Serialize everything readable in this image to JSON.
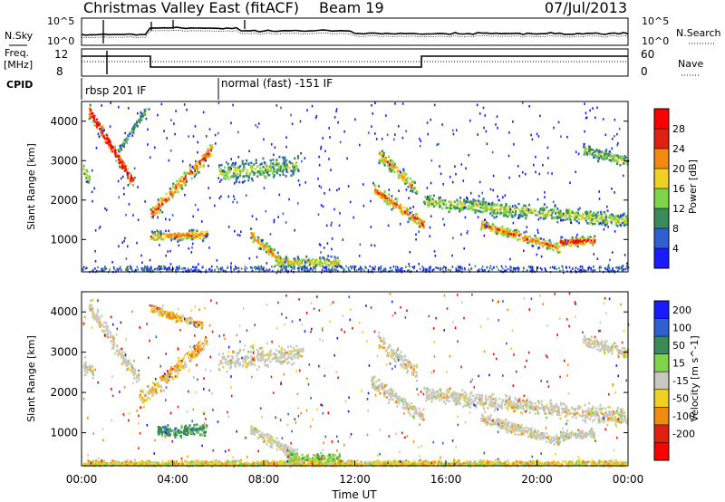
{
  "header": {
    "title": "Christmas Valley East (fitACF)",
    "beam": "Beam 19",
    "date": "07/Jul/2013"
  },
  "summary": {
    "nsky_label": "N.Sky",
    "nsearch_label": "N.Search",
    "nsky_ticks": [
      "10^5",
      "10^0"
    ],
    "nsearch_ticks": [
      "10^5",
      "10^0"
    ],
    "freq_label": "Freq.",
    "freq_unit": "[MHz]",
    "freq_ticks": [
      "12",
      "8"
    ],
    "nave_label": "Nave",
    "nave_ticks": [
      "60",
      "0"
    ],
    "cpid_label": "CPID",
    "cpid_segments": [
      {
        "label": "rbsp 201 IF",
        "start_hour": 0
      },
      {
        "label": "normal (fast) -151 IF",
        "start_hour": 6
      }
    ]
  },
  "chart_data": [
    {
      "type": "heatmap",
      "name": "power_panel",
      "ylabel": "Slant Range [km]",
      "ylim": [
        180,
        4500
      ],
      "yticks": [
        1000,
        2000,
        3000,
        4000
      ],
      "xlim_hours": [
        0,
        24
      ],
      "colorbar": {
        "label": "Power [dB]",
        "ticks": [
          "4",
          "8",
          "12",
          "16",
          "20",
          "24",
          "28"
        ],
        "colors": [
          "#1a1aff",
          "#2f5fd0",
          "#3a8a5a",
          "#7fd44a",
          "#f0d020",
          "#f08a10",
          "#e02010",
          "#ff0000"
        ]
      },
      "echo_bands": [
        {
          "t0": 0.3,
          "t1": 2.3,
          "r0": 4300,
          "r1": 2400,
          "w": 230,
          "intensity": 0.9
        },
        {
          "t0": 0.0,
          "t1": 0.35,
          "r0": 2900,
          "r1": 2500,
          "w": 220,
          "intensity": 0.4
        },
        {
          "t0": 3.0,
          "t1": 5.7,
          "r0": 1650,
          "r1": 3300,
          "w": 260,
          "intensity": 0.65
        },
        {
          "t0": 1.5,
          "t1": 2.8,
          "r0": 3200,
          "r1": 4300,
          "w": 120,
          "intensity": 0.2
        },
        {
          "t0": 3.0,
          "t1": 5.5,
          "r0": 1100,
          "r1": 1150,
          "w": 180,
          "intensity": 0.55
        },
        {
          "t0": 6.0,
          "t1": 9.5,
          "r0": 2700,
          "r1": 2900,
          "w": 380,
          "intensity": 0.3
        },
        {
          "t0": 7.4,
          "t1": 8.7,
          "r0": 1150,
          "r1": 500,
          "w": 200,
          "intensity": 0.55
        },
        {
          "t0": 8.5,
          "t1": 11.3,
          "r0": 450,
          "r1": 450,
          "w": 180,
          "intensity": 0.45
        },
        {
          "t0": 13.0,
          "t1": 14.7,
          "r0": 3200,
          "r1": 2300,
          "w": 250,
          "intensity": 0.5
        },
        {
          "t0": 12.8,
          "t1": 15.0,
          "r0": 2300,
          "r1": 1400,
          "w": 230,
          "intensity": 0.6
        },
        {
          "t0": 15.0,
          "t1": 24.0,
          "r0": 2000,
          "r1": 1500,
          "w": 260,
          "intensity": 0.35
        },
        {
          "t0": 17.5,
          "t1": 21.0,
          "r0": 1400,
          "r1": 800,
          "w": 180,
          "intensity": 0.6
        },
        {
          "t0": 21.0,
          "t1": 22.5,
          "r0": 950,
          "r1": 1000,
          "w": 150,
          "intensity": 0.75
        },
        {
          "t0": 22.0,
          "t1": 24.0,
          "r0": 3300,
          "r1": 3000,
          "w": 200,
          "intensity": 0.3
        }
      ]
    },
    {
      "type": "heatmap",
      "name": "velocity_panel",
      "ylabel": "Slant Range [km]",
      "ylim": [
        180,
        4500
      ],
      "yticks": [
        1000,
        2000,
        3000,
        4000
      ],
      "xlim_hours": [
        0,
        24
      ],
      "xticks": [
        "00:00",
        "04:00",
        "08:00",
        "12:00",
        "16:00",
        "20:00",
        "00:00"
      ],
      "xlabel": "Time UT",
      "colorbar": {
        "label": "Velocity [m s^-1]",
        "ticks": [
          "200",
          "100",
          "50",
          "15",
          "-15",
          "-50",
          "-100",
          "-200"
        ],
        "colors": [
          "#1a1aff",
          "#2f5fd0",
          "#3a8a5a",
          "#7fd44a",
          "#c8c8c0",
          "#f0d020",
          "#f08a10",
          "#e02010",
          "#ff0000"
        ]
      },
      "echo_bands": [
        {
          "t0": 0.0,
          "t1": 0.5,
          "r0": 2700,
          "r1": 2600,
          "w": 300,
          "class": "ground"
        },
        {
          "t0": 0.3,
          "t1": 2.5,
          "r0": 4200,
          "r1": 2300,
          "w": 260,
          "class": "ground"
        },
        {
          "t0": 2.5,
          "t1": 5.5,
          "r0": 1800,
          "r1": 3300,
          "w": 280,
          "class": "negative"
        },
        {
          "t0": 3.0,
          "t1": 5.3,
          "r0": 4100,
          "r1": 3700,
          "w": 140,
          "class": "negative"
        },
        {
          "t0": 3.3,
          "t1": 5.5,
          "r0": 1050,
          "r1": 1100,
          "w": 220,
          "class": "positive"
        },
        {
          "t0": 6.0,
          "t1": 9.7,
          "r0": 2800,
          "r1": 3000,
          "w": 360,
          "class": "ground"
        },
        {
          "t0": 7.4,
          "t1": 9.5,
          "r0": 1100,
          "r1": 450,
          "w": 220,
          "class": "ground"
        },
        {
          "t0": 9.0,
          "t1": 11.3,
          "r0": 400,
          "r1": 350,
          "w": 200,
          "class": "lowpos"
        },
        {
          "t0": 13.0,
          "t1": 14.7,
          "r0": 3300,
          "r1": 2500,
          "w": 300,
          "class": "ground"
        },
        {
          "t0": 12.7,
          "t1": 15.0,
          "r0": 2300,
          "r1": 1400,
          "w": 250,
          "class": "ground"
        },
        {
          "t0": 15.0,
          "t1": 24.0,
          "r0": 2000,
          "r1": 1400,
          "w": 280,
          "class": "ground"
        },
        {
          "t0": 17.5,
          "t1": 21.0,
          "r0": 1400,
          "r1": 800,
          "w": 200,
          "class": "ground"
        },
        {
          "t0": 21.0,
          "t1": 22.5,
          "r0": 950,
          "r1": 1000,
          "w": 160,
          "class": "ground"
        },
        {
          "t0": 22.0,
          "t1": 24.0,
          "r0": 3300,
          "r1": 3000,
          "w": 200,
          "class": "ground"
        },
        {
          "t0": 0.0,
          "t1": 24.0,
          "r0": 250,
          "r1": 250,
          "w": 120,
          "class": "lowmix"
        }
      ]
    }
  ]
}
